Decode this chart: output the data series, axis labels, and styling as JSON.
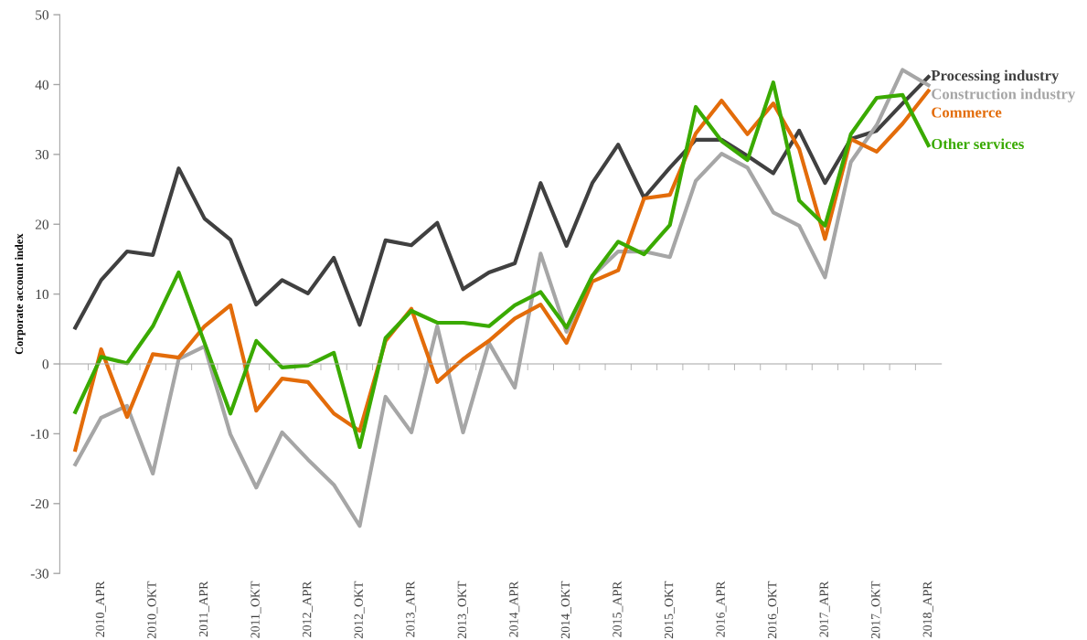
{
  "chart_data": {
    "type": "line",
    "ylabel": "Corporate account index",
    "categories": [
      null,
      "2010_APR",
      null,
      "2010_OKT",
      null,
      "2011_APR",
      null,
      "2011_OKT",
      null,
      "2012_APR",
      null,
      "2012_OKT",
      null,
      "2013_APR",
      null,
      "2013_OKT",
      null,
      "2014_APR",
      null,
      "2014_OKT",
      null,
      "2015_APR",
      null,
      "2015_OKT",
      null,
      "2016_APR",
      null,
      "2016_OKT",
      null,
      "2017_APR",
      null,
      "2017_OKT",
      null,
      "2018_APR"
    ],
    "series": [
      {
        "name": "Processing industry",
        "color": "#404040",
        "values": [
          5.2,
          12.0,
          16.1,
          15.6,
          28.0,
          20.8,
          17.8,
          8.5,
          12.0,
          10.1,
          15.2,
          5.6,
          17.7,
          17.0,
          20.2,
          10.7,
          13.1,
          14.4,
          25.9,
          16.9,
          25.9,
          31.4,
          23.8,
          28.1,
          32.1,
          32.1,
          29.8,
          27.3,
          33.4,
          25.9,
          32.2,
          33.4,
          37.3,
          41.1
        ]
      },
      {
        "name": "Construction industry",
        "color": "#a6a6a6",
        "values": [
          -14.4,
          -7.7,
          -6.0,
          -15.7,
          0.7,
          2.5,
          -10.1,
          -17.7,
          -9.8,
          -13.7,
          -17.3,
          -23.2,
          -4.7,
          -9.8,
          5.4,
          -9.8,
          3.0,
          -3.4,
          15.8,
          4.6,
          12.6,
          16.1,
          16.1,
          15.3,
          26.2,
          30.1,
          28.1,
          21.7,
          19.8,
          12.4,
          28.9,
          34.2,
          42.1,
          39.9
        ]
      },
      {
        "name": "Commerce",
        "color": "#e36c0a",
        "values": [
          -12.3,
          2.1,
          -7.6,
          1.4,
          0.9,
          5.4,
          8.4,
          -6.7,
          -2.1,
          -2.6,
          -7.1,
          -9.6,
          3.3,
          7.9,
          -2.6,
          0.7,
          3.3,
          6.5,
          8.5,
          3.0,
          11.8,
          13.4,
          23.7,
          24.2,
          33.0,
          37.7,
          32.9,
          37.3,
          30.8,
          17.9,
          32.2,
          30.4,
          34.4,
          39.1
        ]
      },
      {
        "name": "Other services",
        "color": "#3aaa00",
        "values": [
          -6.9,
          1.0,
          0.1,
          5.4,
          13.1,
          3.0,
          -7.1,
          3.3,
          -0.5,
          -0.2,
          1.6,
          -11.9,
          3.7,
          7.6,
          5.9,
          5.9,
          5.4,
          8.4,
          10.3,
          5.2,
          12.6,
          17.5,
          15.7,
          19.9,
          36.8,
          31.9,
          29.2,
          40.3,
          23.4,
          19.8,
          32.9,
          38.1,
          38.5,
          31.3
        ]
      }
    ],
    "ylim": [
      -30,
      50
    ],
    "yticks": [
      -30,
      -20,
      -10,
      0,
      10,
      20,
      30,
      40,
      50
    ],
    "legend": false,
    "marker": "none",
    "line_style": "solid"
  }
}
